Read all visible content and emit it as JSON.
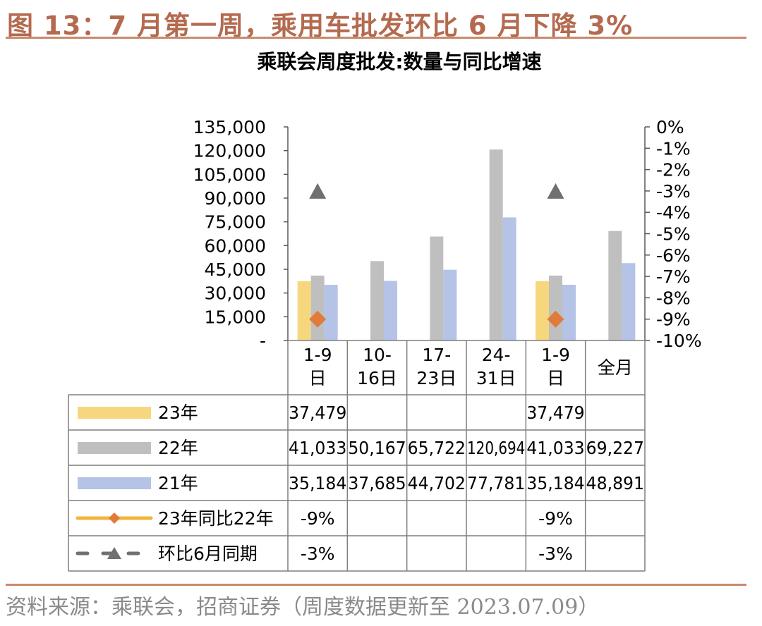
{
  "figure": {
    "title": "图 13：7 月第一周，乘用车批发环比 6 月下降 3%",
    "source": "资料来源：乘联会，招商证券（周度数据更新至 2023.07.09）"
  },
  "colors": {
    "y23": "#f7d77d",
    "y22": "#bfbfbf",
    "y21": "#b4c3e6",
    "yoy_line": "#f2b53d",
    "yoy_marker": "#e07b3c",
    "mom_marker": "#707070",
    "brand": "#b46a4f"
  },
  "chart_data": {
    "type": "bar",
    "title": "乘联会周度批发:数量与同比增速",
    "categories": [
      "1-9\n日",
      "10-\n16日",
      "17-\n23日",
      "24-\n31日",
      "1-9\n日",
      "全月"
    ],
    "y_left": {
      "ylim": [
        0,
        135000
      ],
      "ticks": [
        "135,000",
        "120,000",
        "105,000",
        "90,000",
        "75,000",
        "60,000",
        "45,000",
        "30,000",
        "15,000",
        "-"
      ],
      "tick_values": [
        135000,
        120000,
        105000,
        90000,
        75000,
        60000,
        45000,
        30000,
        15000,
        0
      ]
    },
    "y_right": {
      "ylim": [
        -10,
        0
      ],
      "ticks": [
        "0%",
        "-1%",
        "-2%",
        "-3%",
        "-4%",
        "-5%",
        "-6%",
        "-7%",
        "-8%",
        "-9%",
        "-10%"
      ],
      "tick_values": [
        0,
        -1,
        -2,
        -3,
        -4,
        -5,
        -6,
        -7,
        -8,
        -9,
        -10
      ]
    },
    "series": [
      {
        "name": "23年",
        "kind": "bar",
        "color_key": "y23",
        "values": [
          37479,
          null,
          null,
          null,
          37479,
          null
        ]
      },
      {
        "name": "22年",
        "kind": "bar",
        "color_key": "y22",
        "values": [
          41033,
          50167,
          65722,
          120694,
          41033,
          69227
        ]
      },
      {
        "name": "21年",
        "kind": "bar",
        "color_key": "y21",
        "values": [
          35184,
          37685,
          44702,
          77781,
          35184,
          48891
        ]
      },
      {
        "name": "23年同比22年",
        "kind": "marker-diamond",
        "axis": "right",
        "values": [
          -9,
          null,
          null,
          null,
          -9,
          null
        ]
      },
      {
        "name": "环比6月同期",
        "kind": "marker-triangle",
        "axis": "right",
        "values": [
          -3,
          null,
          null,
          null,
          -3,
          null
        ]
      }
    ],
    "table": {
      "rows": [
        {
          "label": "23年",
          "legend": "bar",
          "color_key": "y23",
          "cells": [
            "37,479",
            "",
            "",
            "",
            "37,479",
            ""
          ]
        },
        {
          "label": "22年",
          "legend": "bar",
          "color_key": "y22",
          "cells": [
            "41,033",
            "50,167",
            "65,722",
            "120,694",
            "41,033",
            "69,227"
          ]
        },
        {
          "label": "21年",
          "legend": "bar",
          "color_key": "y21",
          "cells": [
            "35,184",
            "37,685",
            "44,702",
            "77,781",
            "35,184",
            "48,891"
          ]
        },
        {
          "label": "23年同比22年",
          "legend": "line-diamond",
          "cells": [
            "-9%",
            "",
            "",
            "",
            "-9%",
            ""
          ]
        },
        {
          "label": "环比6月同期",
          "legend": "dash-triangle",
          "cells": [
            "-3%",
            "",
            "",
            "",
            "-3%",
            ""
          ]
        }
      ]
    }
  }
}
